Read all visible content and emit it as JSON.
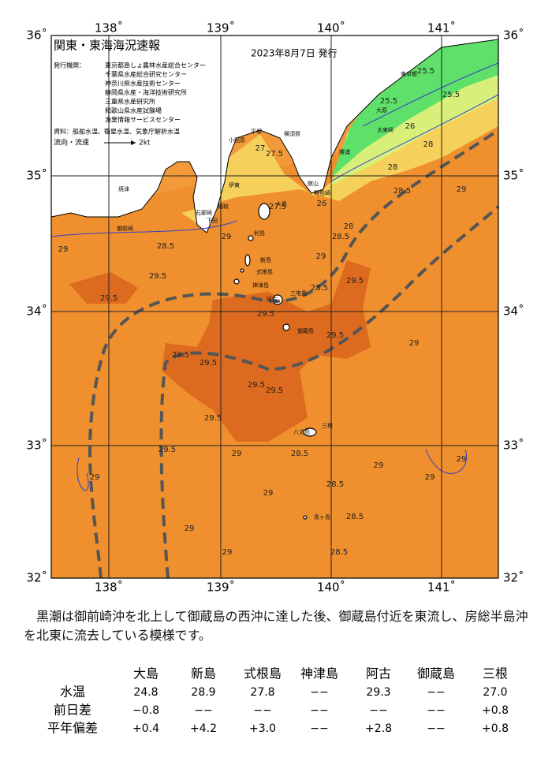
{
  "map": {
    "title": "関東・東海海況速報",
    "issued": "2023年8月7日 発行",
    "publishers_label": "発行機関：",
    "publishers": [
      "東京都島しょ農林水産総合センター",
      "千葉県水産総合研究センター",
      "神奈川県水産技術センター",
      "静岡県水産・海洋技術研究所",
      "三重県水産研究所",
      "和歌山県水産試験場",
      "漁業情報サービスセンター"
    ],
    "sources": "資料：船舶水温、衛星水温、気象庁解析水温",
    "current_legend": "流向・流速",
    "current_scale": "2kt",
    "lon_ticks": [
      "138˚",
      "139˚",
      "140˚",
      "141˚"
    ],
    "lat_ticks": [
      "36˚",
      "35˚",
      "34˚",
      "33˚",
      "32˚"
    ],
    "contour_labels": [
      "25.5",
      "25.5",
      "25.5",
      "26",
      "28",
      "27",
      "27.5",
      "27.5",
      "26",
      "28",
      "28.5",
      "29",
      "28",
      "29",
      "28.5",
      "29",
      "29.5",
      "29.5",
      "28.5",
      "29",
      "28.5",
      "29.5",
      "29.5",
      "29.5",
      "29.5",
      "29.5",
      "29.5",
      "29.5",
      "29.5",
      "29",
      "29",
      "29",
      "29",
      "28.5",
      "28.5",
      "28.5",
      "28.5",
      "29",
      "29",
      "29",
      "29",
      "29",
      "29.5"
    ],
    "places": [
      "東京都",
      "大原",
      "太東崎",
      "勝浦",
      "館山",
      "野島崎",
      "横須賀",
      "平塚",
      "小田原",
      "伊東",
      "稲取",
      "下田",
      "石廊崎",
      "御前崎",
      "焼津",
      "大島",
      "利島",
      "新島",
      "式根島",
      "神津島",
      "三宅島",
      "阿古",
      "御蔵島",
      "八丈島",
      "三根",
      "青ヶ島"
    ]
  },
  "description": "黒潮は御前崎沖を北上して御蔵島の西沖に達した後、御蔵島付近を東流し、房総半島沖を北東に流去している模様です。",
  "table": {
    "columns": [
      "大島",
      "新島",
      "式根島",
      "神津島",
      "阿古",
      "御蔵島",
      "三根"
    ],
    "rows": [
      {
        "label": "水温",
        "cells": [
          "24.8",
          "28.9",
          "27.8",
          "−−",
          "29.3",
          "−−",
          "27.0"
        ]
      },
      {
        "label": "前日差",
        "cells": [
          "−0.8",
          "−−",
          "−−",
          "−−",
          "−−",
          "−−",
          "+0.8"
        ]
      },
      {
        "label": "平年偏差",
        "cells": [
          "+0.4",
          "+4.2",
          "+3.0",
          "−−",
          "+2.8",
          "−−",
          "+0.8"
        ]
      }
    ]
  }
}
